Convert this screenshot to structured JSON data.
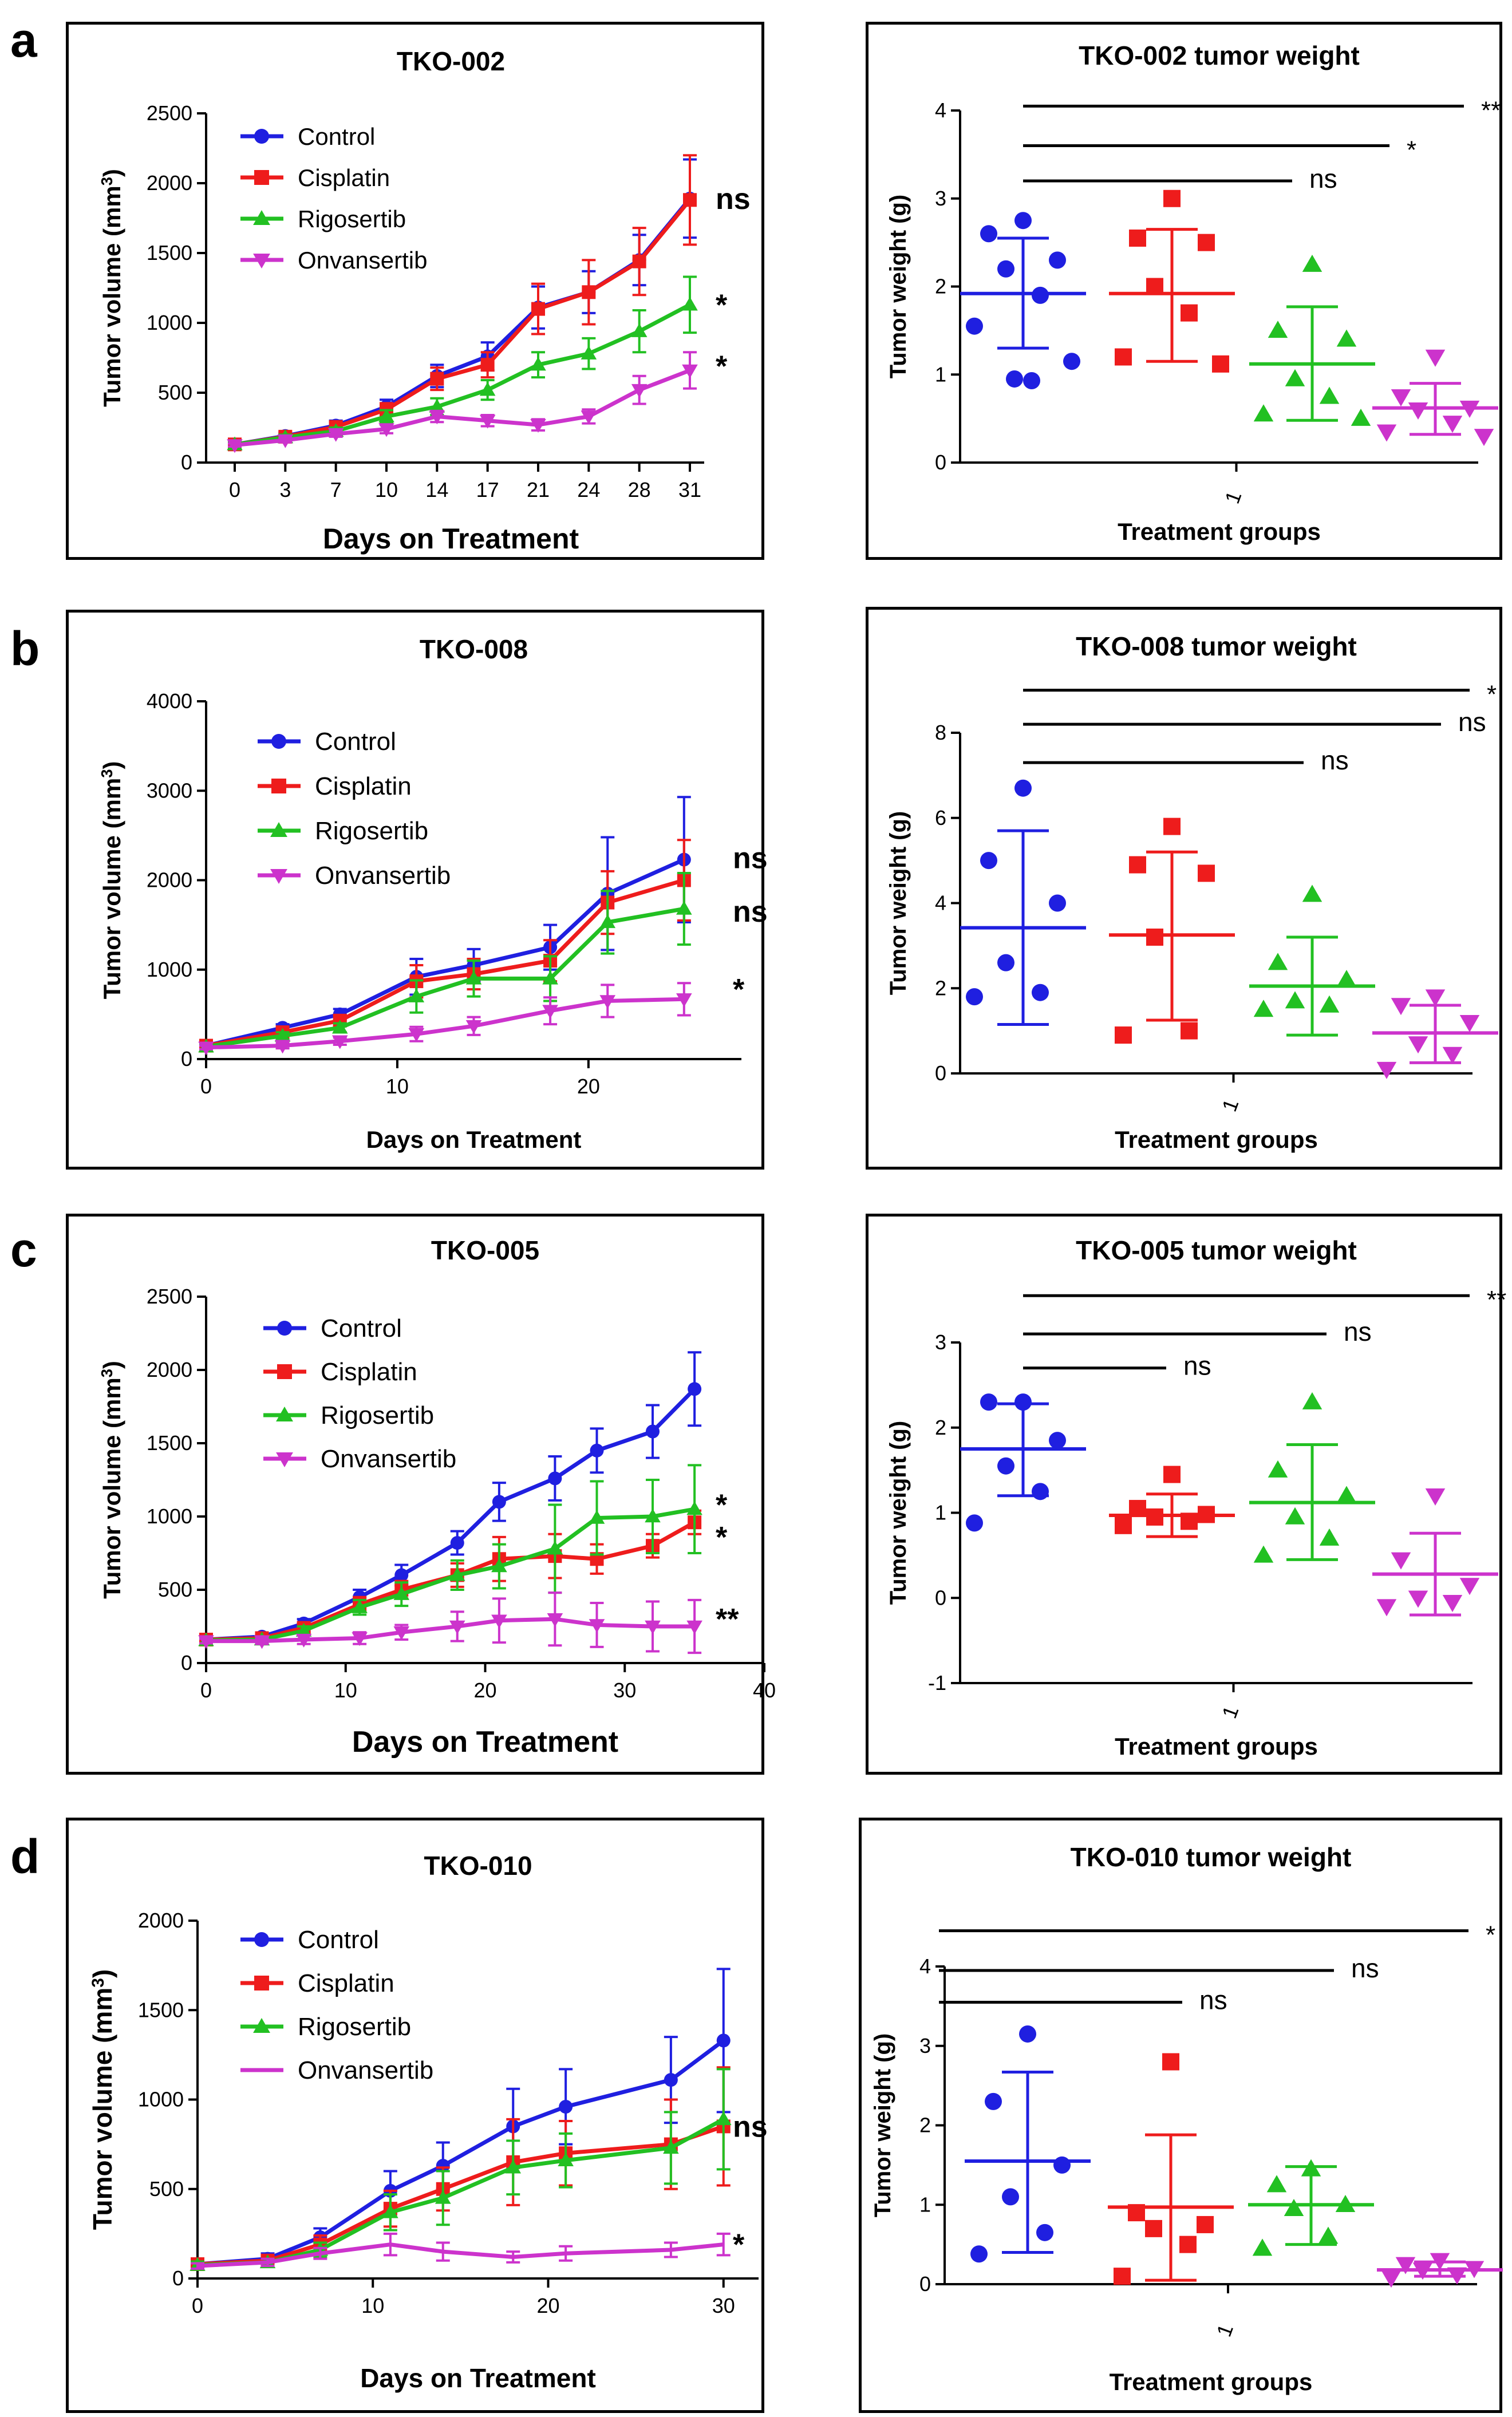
{
  "panel_letters": [
    "a",
    "b",
    "c",
    "d"
  ],
  "chart_data": [
    {
      "type": "line",
      "panel": "a",
      "title": "TKO-002",
      "xlabel": "Days on Treatment",
      "ylabel": "Tumor volume (mm",
      "ylabel_sup": "3",
      "ylabel_end": ")",
      "x_categorical": true,
      "xticks": [
        "0",
        "3",
        "7",
        "10",
        "14",
        "17",
        "21",
        "24",
        "28",
        "31"
      ],
      "yticks": [
        "0",
        "500",
        "1000",
        "1500",
        "2000",
        "2500"
      ],
      "ylim": [
        0,
        2500
      ],
      "series": [
        {
          "name": "Control",
          "color": "#1f1fe0",
          "marker": "circle",
          "values": [
            130,
            190,
            265,
            400,
            620,
            760,
            1110,
            1220,
            1450,
            1890
          ],
          "errors": [
            15,
            25,
            35,
            50,
            80,
            100,
            150,
            150,
            180,
            280
          ]
        },
        {
          "name": "Cisplatin",
          "color": "#ee1c1c",
          "marker": "square",
          "values": [
            130,
            185,
            255,
            380,
            600,
            700,
            1100,
            1220,
            1440,
            1880
          ],
          "errors": [
            15,
            20,
            30,
            45,
            80,
            90,
            180,
            230,
            240,
            320
          ]
        },
        {
          "name": "Rigosertib",
          "color": "#22c022",
          "marker": "triangle-up",
          "values": [
            130,
            180,
            225,
            330,
            400,
            520,
            700,
            780,
            940,
            1130
          ],
          "errors": [
            15,
            20,
            25,
            45,
            60,
            70,
            90,
            110,
            150,
            200
          ]
        },
        {
          "name": "Onvansertib",
          "color": "#cc33cc",
          "marker": "triangle-down",
          "values": [
            125,
            160,
            205,
            240,
            330,
            300,
            270,
            330,
            520,
            660
          ],
          "errors": [
            10,
            15,
            20,
            30,
            40,
            40,
            40,
            50,
            100,
            130
          ]
        }
      ],
      "end_labels": [
        {
          "text": "ns",
          "y": 1890
        },
        {
          "text": "*",
          "y": 1130
        },
        {
          "text": "*",
          "y": 690
        }
      ]
    },
    {
      "type": "scatter",
      "panel": "a",
      "title": "TKO-002 tumor weight",
      "xlabel": "Treatment groups",
      "xtick": "1",
      "ylabel": "Tumor weight (g)",
      "yticks": [
        "0",
        "1",
        "2",
        "3",
        "4"
      ],
      "ylim": [
        0,
        4
      ],
      "groups": [
        {
          "color": "#1f1fe0",
          "marker": "circle",
          "points": [
            2.75,
            2.6,
            2.3,
            2.2,
            1.9,
            1.55,
            1.15,
            0.95,
            0.93
          ],
          "mean": 1.92,
          "sd_low": 1.3,
          "sd_high": 2.55
        },
        {
          "color": "#ee1c1c",
          "marker": "square",
          "points": [
            3.0,
            2.55,
            2.5,
            2.0,
            1.7,
            1.2,
            1.12
          ],
          "mean": 1.92,
          "sd_low": 1.15,
          "sd_high": 2.65
        },
        {
          "color": "#22c022",
          "marker": "triangle-up",
          "points": [
            2.25,
            1.5,
            1.4,
            0.95,
            0.75,
            0.55,
            0.5
          ],
          "mean": 1.12,
          "sd_low": 0.48,
          "sd_high": 1.77
        },
        {
          "color": "#cc33cc",
          "marker": "triangle-down",
          "points": [
            1.2,
            0.75,
            0.62,
            0.6,
            0.45,
            0.35,
            0.3
          ],
          "mean": 0.62,
          "sd_low": 0.32,
          "sd_high": 0.9
        }
      ],
      "brackets": [
        {
          "to": 4,
          "label": "**",
          "y": 4.05
        },
        {
          "to": 3,
          "label": "*",
          "y": 3.6
        },
        {
          "to": 2,
          "label": "ns",
          "y": 3.2
        }
      ]
    },
    {
      "type": "line",
      "panel": "b",
      "title": "TKO-008",
      "xlabel": "Days on Treatment",
      "ylabel": "Tumor volume (mm",
      "ylabel_sup": "3",
      "ylabel_end": ")",
      "x_categorical": false,
      "xlim": [
        0,
        28
      ],
      "xticks": [
        "0",
        "10",
        "20"
      ],
      "yticks": [
        "0",
        "1000",
        "2000",
        "3000",
        "4000"
      ],
      "ylim": [
        0,
        4000
      ],
      "x": [
        0,
        4,
        7,
        11,
        14,
        18,
        21,
        25
      ],
      "series": [
        {
          "name": "Control",
          "color": "#1f1fe0",
          "marker": "circle",
          "values": [
            150,
            350,
            500,
            920,
            1050,
            1250,
            1850,
            2230
          ],
          "errors": [
            30,
            40,
            60,
            200,
            180,
            250,
            630,
            700
          ]
        },
        {
          "name": "Cisplatin",
          "color": "#ee1c1c",
          "marker": "square",
          "values": [
            150,
            300,
            430,
            870,
            950,
            1100,
            1750,
            2000
          ],
          "errors": [
            30,
            40,
            60,
            180,
            170,
            230,
            350,
            450
          ]
        },
        {
          "name": "Rigosertib",
          "color": "#22c022",
          "marker": "triangle-up",
          "values": [
            140,
            260,
            350,
            700,
            900,
            900,
            1530,
            1680
          ],
          "errors": [
            30,
            40,
            50,
            180,
            200,
            250,
            350,
            400
          ]
        },
        {
          "name": "Onvansertib",
          "color": "#cc33cc",
          "marker": "triangle-down",
          "values": [
            130,
            150,
            200,
            280,
            370,
            540,
            650,
            670
          ],
          "errors": [
            20,
            30,
            40,
            80,
            100,
            150,
            180,
            180
          ]
        }
      ],
      "end_labels": [
        {
          "text": "ns",
          "y": 2250
        },
        {
          "text": "ns",
          "y": 1650
        },
        {
          "text": "*",
          "y": 780
        }
      ]
    },
    {
      "type": "scatter",
      "panel": "b",
      "title": "TKO-008 tumor weight",
      "xlabel": "Treatment groups",
      "xtick": "1",
      "ylabel": "Tumor weight (g)",
      "yticks": [
        "0",
        "2",
        "4",
        "6",
        "8"
      ],
      "ylim": [
        0,
        8
      ],
      "groups": [
        {
          "color": "#1f1fe0",
          "marker": "circle",
          "points": [
            6.7,
            5.0,
            4.0,
            2.6,
            1.9,
            1.8
          ],
          "mean": 3.42,
          "sd_low": 1.15,
          "sd_high": 5.7
        },
        {
          "color": "#ee1c1c",
          "marker": "square",
          "points": [
            5.8,
            4.9,
            4.7,
            3.2,
            1.0,
            0.9
          ],
          "mean": 3.25,
          "sd_low": 1.25,
          "sd_high": 5.2
        },
        {
          "color": "#22c022",
          "marker": "triangle-up",
          "points": [
            4.2,
            2.6,
            2.2,
            1.7,
            1.6,
            1.5
          ],
          "mean": 2.05,
          "sd_low": 0.9,
          "sd_high": 3.2
        },
        {
          "color": "#cc33cc",
          "marker": "triangle-down",
          "points": [
            1.8,
            1.6,
            1.2,
            0.7,
            0.45,
            0.1
          ],
          "mean": 0.95,
          "sd_low": 0.25,
          "sd_high": 1.6
        }
      ],
      "brackets": [
        {
          "to": 4,
          "label": "*",
          "y": 9.0
        },
        {
          "to": 3,
          "label": "ns",
          "y": 8.2
        },
        {
          "to": 2,
          "label": "ns",
          "y": 7.3
        }
      ]
    },
    {
      "type": "line",
      "panel": "c",
      "title": "TKO-005",
      "xlabel": "Days on Treatment",
      "ylabel": "Tumor volume (mm",
      "ylabel_sup": "3",
      "ylabel_end": ")",
      "x_categorical": false,
      "xlim": [
        0,
        40
      ],
      "xticks": [
        "0",
        "10",
        "20",
        "30",
        "40"
      ],
      "yticks": [
        "0",
        "500",
        "1000",
        "1500",
        "2000",
        "2500"
      ],
      "ylim": [
        0,
        2500
      ],
      "x": [
        0,
        4,
        7,
        11,
        14,
        18,
        21,
        25,
        28,
        32,
        35
      ],
      "series": [
        {
          "name": "Control",
          "color": "#1f1fe0",
          "marker": "circle",
          "values": [
            160,
            180,
            270,
            450,
            600,
            820,
            1100,
            1260,
            1450,
            1580,
            1870
          ],
          "errors": [
            20,
            20,
            30,
            50,
            70,
            80,
            130,
            150,
            150,
            180,
            250
          ]
        },
        {
          "name": "Cisplatin",
          "color": "#ee1c1c",
          "marker": "square",
          "values": [
            160,
            170,
            240,
            400,
            500,
            600,
            710,
            730,
            710,
            800,
            960
          ],
          "errors": [
            20,
            20,
            30,
            50,
            60,
            80,
            150,
            150,
            100,
            80,
            80
          ]
        },
        {
          "name": "Rigosertib",
          "color": "#22c022",
          "marker": "triangle-up",
          "values": [
            155,
            160,
            220,
            380,
            470,
            600,
            660,
            780,
            990,
            1000,
            1050
          ],
          "errors": [
            20,
            20,
            30,
            50,
            80,
            100,
            150,
            300,
            250,
            250,
            300
          ]
        },
        {
          "name": "Onvansertib",
          "color": "#cc33cc",
          "marker": "triangle-down",
          "values": [
            150,
            150,
            160,
            170,
            210,
            250,
            290,
            300,
            260,
            250,
            250
          ],
          "errors": [
            15,
            20,
            30,
            40,
            50,
            100,
            150,
            180,
            150,
            170,
            180
          ]
        }
      ],
      "end_labels": [
        {
          "text": "*",
          "y": 1080
        },
        {
          "text": "*",
          "y": 860
        },
        {
          "text": "**",
          "y": 300
        }
      ]
    },
    {
      "type": "scatter",
      "panel": "c",
      "title": "TKO-005 tumor weight",
      "xlabel": "Treatment groups",
      "xtick": "1",
      "ylabel": "Tumor weight (g)",
      "yticks": [
        "-1",
        "0",
        "1",
        "2",
        "3"
      ],
      "ylim": [
        -1,
        3
      ],
      "groups": [
        {
          "color": "#1f1fe0",
          "marker": "circle",
          "points": [
            2.3,
            2.3,
            1.85,
            1.55,
            1.25,
            0.88
          ],
          "mean": 1.75,
          "sd_low": 1.2,
          "sd_high": 2.28
        },
        {
          "color": "#ee1c1c",
          "marker": "square",
          "points": [
            1.45,
            1.05,
            0.98,
            0.95,
            0.9,
            0.85
          ],
          "mean": 0.97,
          "sd_low": 0.72,
          "sd_high": 1.22
        },
        {
          "color": "#22c022",
          "marker": "triangle-up",
          "points": [
            2.3,
            1.5,
            1.2,
            0.95,
            0.7,
            0.5
          ],
          "mean": 1.12,
          "sd_low": 0.45,
          "sd_high": 1.8
        },
        {
          "color": "#cc33cc",
          "marker": "triangle-down",
          "points": [
            1.2,
            0.45,
            0.15,
            0.0,
            -0.05,
            -0.1
          ],
          "mean": 0.28,
          "sd_low": -0.2,
          "sd_high": 0.76
        }
      ],
      "brackets": [
        {
          "to": 4,
          "label": "**",
          "y": 3.55
        },
        {
          "to": 3,
          "label": "ns",
          "y": 3.1
        },
        {
          "to": 2,
          "label": "ns",
          "y": 2.7
        }
      ]
    },
    {
      "type": "line",
      "panel": "d",
      "title": "TKO-010",
      "xlabel": "Days on Treatment",
      "ylabel": "Tumor volume (mm",
      "ylabel_sup": "3",
      "ylabel_end": ")",
      "x_categorical": false,
      "xlim": [
        0,
        32
      ],
      "xticks": [
        "0",
        "10",
        "20",
        "30"
      ],
      "yticks": [
        "0",
        "500",
        "1000",
        "1500",
        "2000"
      ],
      "ylim": [
        0,
        2000
      ],
      "x": [
        0,
        4,
        7,
        11,
        14,
        18,
        21,
        27,
        30
      ],
      "series": [
        {
          "name": "Control",
          "color": "#1f1fe0",
          "marker": "circle",
          "values": [
            80,
            110,
            230,
            490,
            630,
            850,
            960,
            1110,
            1330
          ],
          "errors": [
            20,
            30,
            50,
            110,
            130,
            210,
            210,
            240,
            400
          ]
        },
        {
          "name": "Cisplatin",
          "color": "#ee1c1c",
          "marker": "square",
          "values": [
            80,
            100,
            190,
            390,
            500,
            650,
            700,
            750,
            850
          ],
          "errors": [
            20,
            30,
            50,
            100,
            120,
            240,
            180,
            250,
            330
          ]
        },
        {
          "name": "Rigosertib",
          "color": "#22c022",
          "marker": "triangle-up",
          "values": [
            75,
            90,
            160,
            370,
            450,
            620,
            660,
            730,
            890
          ],
          "errors": [
            20,
            20,
            40,
            100,
            150,
            150,
            150,
            200,
            280
          ]
        },
        {
          "name": "Onvansertib",
          "color": "#cc33cc",
          "marker": "none",
          "values": [
            70,
            90,
            140,
            190,
            150,
            120,
            140,
            160,
            190
          ],
          "errors": [
            15,
            20,
            30,
            60,
            50,
            30,
            40,
            40,
            60
          ]
        }
      ],
      "end_labels": [
        {
          "text": "ns",
          "y": 850
        },
        {
          "text": "*",
          "y": 190
        }
      ]
    },
    {
      "type": "scatter",
      "panel": "d",
      "title": "TKO-010 tumor weight",
      "xlabel": "Treatment groups",
      "xtick": "1",
      "ylabel": "Tumor weight (g)",
      "yticks": [
        "0",
        "1",
        "2",
        "3",
        "4"
      ],
      "ylim": [
        0,
        4
      ],
      "groups": [
        {
          "color": "#1f1fe0",
          "marker": "circle",
          "points": [
            3.15,
            2.3,
            1.5,
            1.1,
            0.65,
            0.38
          ],
          "mean": 1.55,
          "sd_low": 0.4,
          "sd_high": 2.67
        },
        {
          "color": "#ee1c1c",
          "marker": "square",
          "points": [
            2.8,
            0.9,
            0.75,
            0.7,
            0.5,
            0.1
          ],
          "mean": 0.97,
          "sd_low": 0.05,
          "sd_high": 1.88
        },
        {
          "color": "#22c022",
          "marker": "triangle-up",
          "points": [
            1.45,
            1.25,
            1.0,
            0.95,
            0.6,
            0.45
          ],
          "mean": 1.0,
          "sd_low": 0.5,
          "sd_high": 1.48
        },
        {
          "color": "#cc33cc",
          "marker": "triangle-down",
          "points": [
            0.3,
            0.25,
            0.2,
            0.18,
            0.12,
            0.08
          ],
          "mean": 0.18,
          "sd_low": 0.1,
          "sd_high": 0.28
        }
      ],
      "brackets": [
        {
          "to": 4,
          "label": "*",
          "y": 4.45
        },
        {
          "to": 3,
          "label": "ns",
          "y": 3.95
        },
        {
          "to": 2,
          "label": "ns",
          "y": 3.55
        }
      ]
    }
  ]
}
